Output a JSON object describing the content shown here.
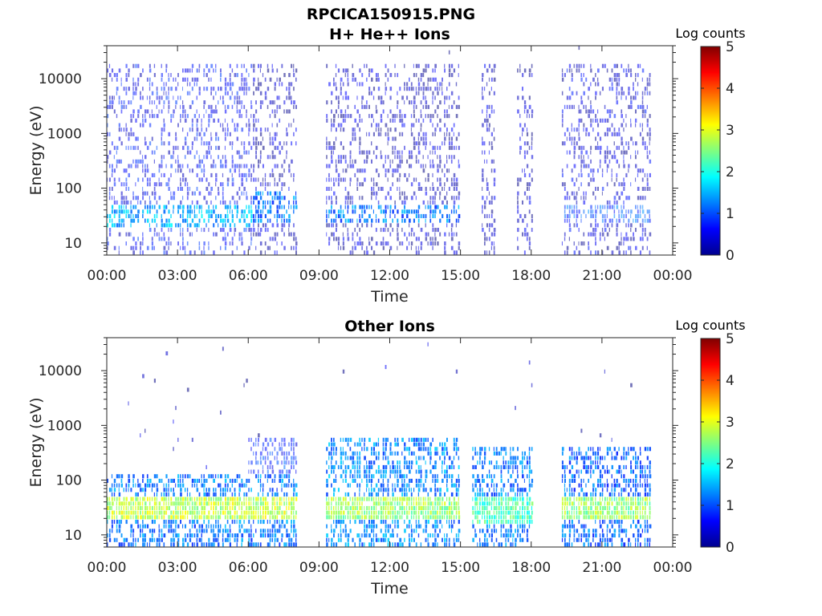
{
  "figure": {
    "title": "RPCICA150915.PNG"
  },
  "chart_data": [
    {
      "type": "heatmap",
      "title": "H+ He++ Ions",
      "xlabel": "Time",
      "ylabel": "Energy (eV)",
      "yscale": "log",
      "xlim_hours": [
        0,
        24
      ],
      "ylim": [
        6,
        40000
      ],
      "x_ticks": [
        "00:00",
        "03:00",
        "06:00",
        "09:00",
        "12:00",
        "15:00",
        "18:00",
        "21:00",
        "00:00"
      ],
      "y_ticks": [
        {
          "value": 10,
          "label": "10"
        },
        {
          "value": 100,
          "label": "100"
        },
        {
          "value": 1000,
          "label": "1000"
        },
        {
          "value": 10000,
          "label": "10000"
        }
      ],
      "colorbar": {
        "label": "Log counts",
        "range": [
          0,
          5
        ],
        "ticks": [
          "0",
          "1",
          "2",
          "3",
          "4",
          "5"
        ],
        "colormap": "jet"
      },
      "data_gaps_hours": [
        [
          8.15,
          9.35
        ],
        [
          15.0,
          15.9
        ],
        [
          16.5,
          17.4
        ],
        [
          18.1,
          19.3
        ],
        [
          23.1,
          24.0
        ]
      ],
      "intensity_profile": [
        {
          "x_range_hours": [
            0.0,
            6.2
          ],
          "energy_eV": [
            6,
            20000
          ],
          "log_counts": 0.6
        },
        {
          "x_range_hours": [
            0.0,
            6.2
          ],
          "energy_eV": [
            20,
            50
          ],
          "log_counts": 1.5
        },
        {
          "x_range_hours": [
            6.2,
            8.15
          ],
          "energy_eV": [
            6,
            20000
          ],
          "log_counts": 0.3
        },
        {
          "x_range_hours": [
            6.2,
            8.15
          ],
          "energy_eV": [
            25,
            80
          ],
          "log_counts": 1.2
        },
        {
          "x_range_hours": [
            9.35,
            15.0
          ],
          "energy_eV": [
            6,
            20000
          ],
          "log_counts": 0.3
        },
        {
          "x_range_hours": [
            9.35,
            15.0
          ],
          "energy_eV": [
            25,
            50
          ],
          "log_counts": 1.2
        },
        {
          "x_range_hours": [
            15.9,
            16.5
          ],
          "energy_eV": [
            6,
            20000
          ],
          "log_counts": 0.3
        },
        {
          "x_range_hours": [
            17.4,
            18.1
          ],
          "energy_eV": [
            6,
            20000
          ],
          "log_counts": 0.3
        },
        {
          "x_range_hours": [
            19.3,
            23.1
          ],
          "energy_eV": [
            6,
            20000
          ],
          "log_counts": 0.4
        },
        {
          "x_range_hours": [
            19.3,
            23.1
          ],
          "energy_eV": [
            25,
            50
          ],
          "log_counts": 1.0
        }
      ]
    },
    {
      "type": "heatmap",
      "title": "Other Ions",
      "xlabel": "Time",
      "ylabel": "Energy (eV)",
      "yscale": "log",
      "xlim_hours": [
        0,
        24
      ],
      "ylim": [
        6,
        40000
      ],
      "x_ticks": [
        "00:00",
        "03:00",
        "06:00",
        "09:00",
        "12:00",
        "15:00",
        "18:00",
        "21:00",
        "00:00"
      ],
      "y_ticks": [
        {
          "value": 10,
          "label": "10"
        },
        {
          "value": 100,
          "label": "100"
        },
        {
          "value": 1000,
          "label": "1000"
        },
        {
          "value": 10000,
          "label": "10000"
        }
      ],
      "colorbar": {
        "label": "Log counts",
        "range": [
          0,
          5
        ],
        "ticks": [
          "0",
          "1",
          "2",
          "3",
          "4",
          "5"
        ],
        "colormap": "jet"
      },
      "data_gaps_hours": [
        [
          8.15,
          9.35
        ],
        [
          15.0,
          15.5
        ],
        [
          18.1,
          19.3
        ],
        [
          23.1,
          24.0
        ]
      ],
      "intensity_profile": [
        {
          "x_range_hours": [
            0.0,
            8.15
          ],
          "energy_eV": [
            6,
            120
          ],
          "log_counts": 1.2
        },
        {
          "x_range_hours": [
            0.0,
            8.15
          ],
          "energy_eV": [
            20,
            45
          ],
          "log_counts": 2.8
        },
        {
          "x_range_hours": [
            6.0,
            8.15
          ],
          "energy_eV": [
            60,
            600
          ],
          "log_counts": 0.8
        },
        {
          "x_range_hours": [
            9.35,
            15.0
          ],
          "energy_eV": [
            6,
            600
          ],
          "log_counts": 1.3
        },
        {
          "x_range_hours": [
            9.35,
            15.0
          ],
          "energy_eV": [
            20,
            45
          ],
          "log_counts": 2.6
        },
        {
          "x_range_hours": [
            15.5,
            18.1
          ],
          "energy_eV": [
            6,
            400
          ],
          "log_counts": 1.2
        },
        {
          "x_range_hours": [
            15.5,
            18.1
          ],
          "energy_eV": [
            15,
            45
          ],
          "log_counts": 2.2
        },
        {
          "x_range_hours": [
            19.3,
            23.1
          ],
          "energy_eV": [
            6,
            400
          ],
          "log_counts": 1.1
        },
        {
          "x_range_hours": [
            19.3,
            23.1
          ],
          "energy_eV": [
            20,
            45
          ],
          "log_counts": 2.6
        }
      ]
    }
  ]
}
